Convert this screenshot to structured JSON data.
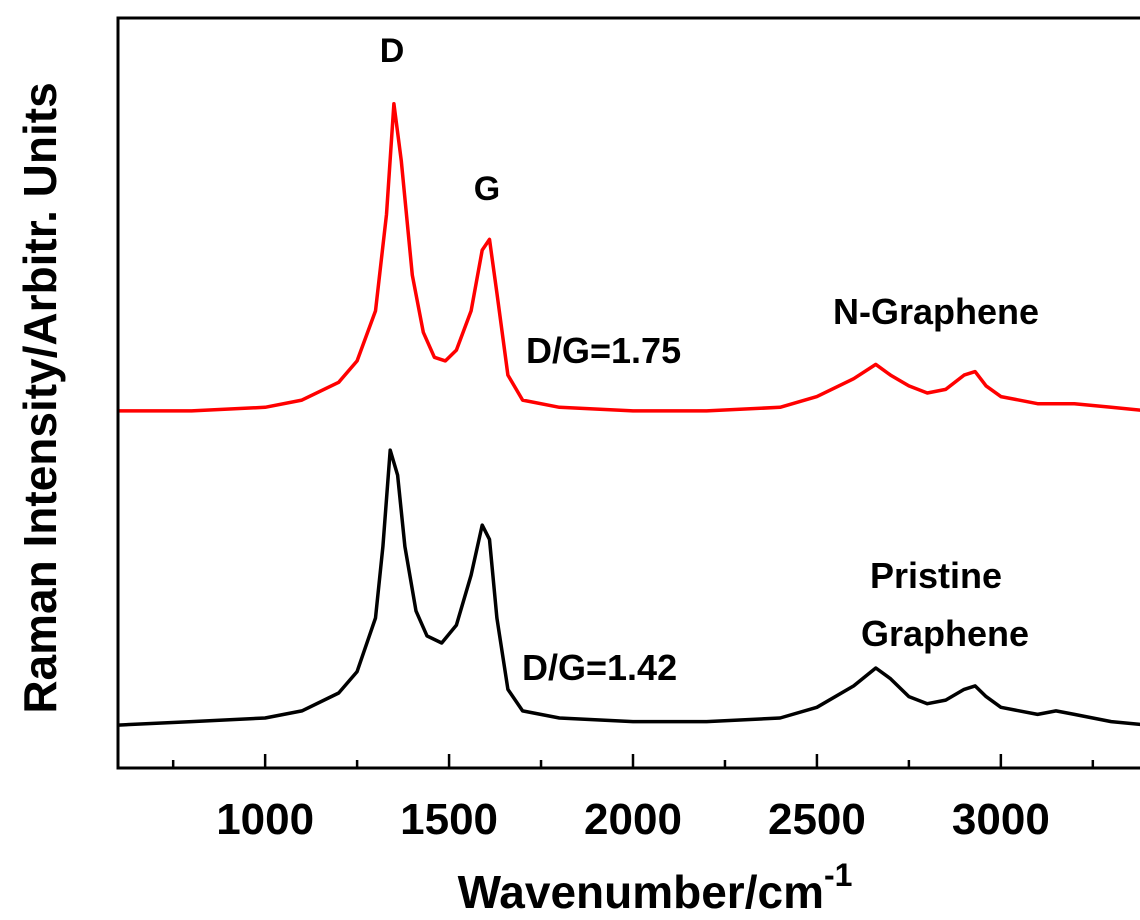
{
  "chart_data": {
    "type": "line",
    "xlabel": "Wavenumber/cm",
    "xlabel_superscript": "-1",
    "ylabel": "Raman Intensity/Arbitr. Units",
    "xlim": [
      600,
      3400
    ],
    "ylim": [
      0,
      2.1
    ],
    "x_ticks_major": [
      1000,
      1500,
      2000,
      2500,
      3000
    ],
    "x_ticks_major_labels": [
      "1000",
      "1500",
      "2000",
      "2500",
      "3000"
    ],
    "x_ticks_minor": [
      750,
      1250,
      1750,
      2250,
      2750,
      3250
    ],
    "grid": false,
    "legend": "none",
    "series": [
      {
        "name": "N-Graphene",
        "color": "#ff0000",
        "label_lines": [
          "N-Graphene"
        ],
        "ratio_label": "D/G=1.75",
        "x": [
          600,
          800,
          1000,
          1100,
          1200,
          1250,
          1300,
          1330,
          1350,
          1370,
          1400,
          1430,
          1460,
          1490,
          1520,
          1560,
          1590,
          1610,
          1630,
          1660,
          1700,
          1800,
          2000,
          2200,
          2400,
          2500,
          2600,
          2660,
          2700,
          2750,
          2800,
          2850,
          2900,
          2930,
          2960,
          3000,
          3100,
          3200,
          3300,
          3400
        ],
        "y": [
          1.0,
          1.0,
          1.01,
          1.03,
          1.08,
          1.14,
          1.28,
          1.55,
          1.86,
          1.7,
          1.38,
          1.22,
          1.15,
          1.14,
          1.17,
          1.28,
          1.45,
          1.48,
          1.33,
          1.1,
          1.03,
          1.01,
          1.0,
          1.0,
          1.01,
          1.04,
          1.09,
          1.13,
          1.1,
          1.07,
          1.05,
          1.06,
          1.1,
          1.11,
          1.07,
          1.04,
          1.02,
          1.02,
          1.01,
          1.0
        ]
      },
      {
        "name": "Pristine Graphene",
        "color": "#000000",
        "label_lines": [
          "Pristine",
          "Graphene"
        ],
        "ratio_label": "D/G=1.42",
        "x": [
          600,
          800,
          1000,
          1100,
          1200,
          1250,
          1300,
          1320,
          1340,
          1360,
          1380,
          1410,
          1440,
          1480,
          1520,
          1560,
          1590,
          1610,
          1630,
          1660,
          1700,
          1800,
          2000,
          2200,
          2400,
          2500,
          2600,
          2660,
          2700,
          2750,
          2800,
          2850,
          2900,
          2930,
          2960,
          3000,
          3100,
          3150,
          3200,
          3300,
          3400
        ],
        "y": [
          0.12,
          0.13,
          0.14,
          0.16,
          0.21,
          0.27,
          0.42,
          0.62,
          0.89,
          0.82,
          0.62,
          0.44,
          0.37,
          0.35,
          0.4,
          0.54,
          0.68,
          0.64,
          0.42,
          0.22,
          0.16,
          0.14,
          0.13,
          0.13,
          0.14,
          0.17,
          0.23,
          0.28,
          0.25,
          0.2,
          0.18,
          0.19,
          0.22,
          0.23,
          0.2,
          0.17,
          0.15,
          0.16,
          0.15,
          0.13,
          0.12
        ]
      }
    ],
    "annotations": [
      "D",
      "G"
    ]
  }
}
